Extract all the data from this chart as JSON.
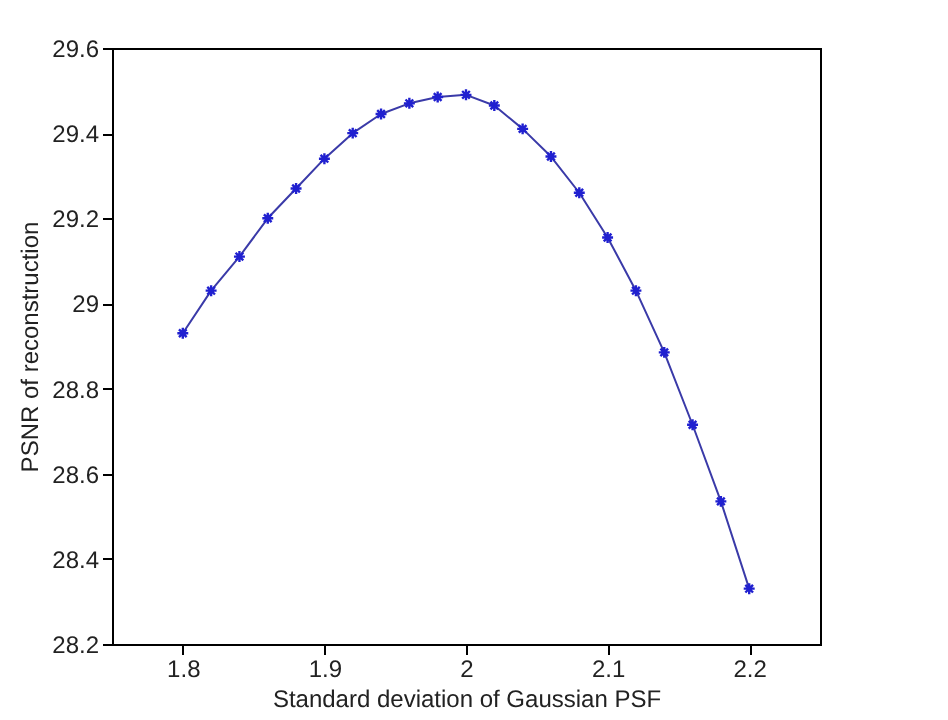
{
  "chart_data": {
    "type": "line",
    "xlabel": "Standard deviation of Gaussian PSF",
    "ylabel": "PSNR of reconstruction",
    "x": [
      1.8,
      1.82,
      1.84,
      1.86,
      1.88,
      1.9,
      1.92,
      1.94,
      1.96,
      1.98,
      2.0,
      2.02,
      2.04,
      2.06,
      2.08,
      2.1,
      2.12,
      2.14,
      2.16,
      2.18,
      2.2
    ],
    "series": [
      {
        "color": "#3a3aa8",
        "values": [
          28.93,
          29.03,
          29.11,
          29.2,
          29.27,
          29.34,
          29.4,
          29.445,
          29.47,
          29.485,
          29.49,
          29.465,
          29.41,
          29.345,
          29.26,
          29.155,
          29.03,
          28.885,
          28.715,
          28.535,
          28.33
        ]
      }
    ],
    "xlim": [
      1.75,
      2.25
    ],
    "xticks": [
      1.8,
      1.9,
      2,
      2.1,
      2.2
    ],
    "ylim": [
      28.2,
      29.6
    ],
    "yticks": [
      28.2,
      28.4,
      28.6,
      28.8,
      29,
      29.2,
      29.4,
      29.6
    ],
    "grid": false,
    "marker": "cross",
    "line_style": "solid"
  }
}
